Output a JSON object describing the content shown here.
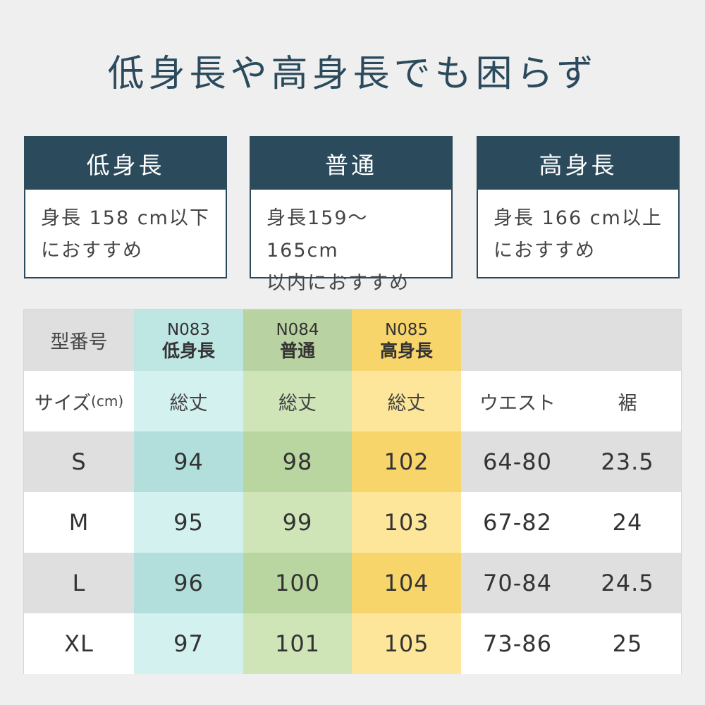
{
  "title": "低身長や高身長でも困らず",
  "categories": [
    {
      "label": "低身長",
      "desc": "身長 158 cm以下\nにおすすめ"
    },
    {
      "label": "普通",
      "desc": "身長159〜165cm\n以内におすすめ"
    },
    {
      "label": "高身長",
      "desc": "身長 166 cm以上\nにおすすめ"
    }
  ],
  "table": {
    "model_label": "型番号",
    "models": [
      {
        "code": "N083",
        "name": "低身長"
      },
      {
        "code": "N084",
        "name": "普通"
      },
      {
        "code": "N085",
        "name": "高身長"
      }
    ],
    "size_label": "サイズ",
    "size_unit": "(cm)",
    "sub_headers": [
      "総丈",
      "総丈",
      "総丈",
      "ウエスト",
      "裾"
    ],
    "rows": [
      {
        "size": "S",
        "values": [
          "94",
          "98",
          "102",
          "64-80",
          "23.5"
        ]
      },
      {
        "size": "M",
        "values": [
          "95",
          "99",
          "103",
          "67-82",
          "24"
        ]
      },
      {
        "size": "L",
        "values": [
          "96",
          "100",
          "104",
          "70-84",
          "24.5"
        ]
      },
      {
        "size": "XL",
        "values": [
          "97",
          "101",
          "105",
          "73-86",
          "25"
        ]
      }
    ]
  },
  "colors": {
    "navy": "#2b4a5c",
    "teal": "#bee6e3",
    "green": "#b8d3a1",
    "yellow": "#f7d56a",
    "gray": "#dfdfdf"
  }
}
